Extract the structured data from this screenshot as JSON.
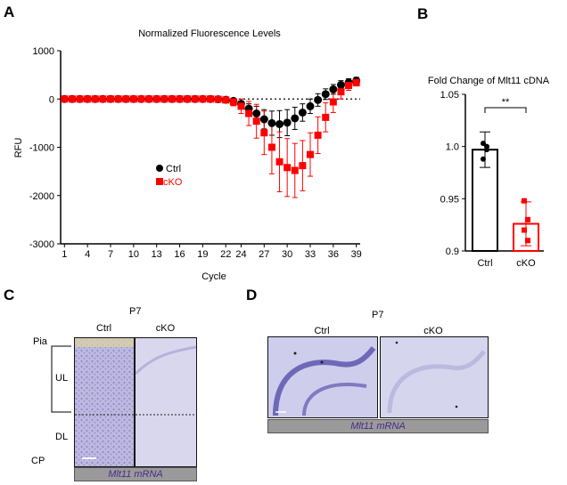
{
  "panels": {
    "a": "A",
    "b": "B",
    "c": "C",
    "d": "D"
  },
  "colors": {
    "ctrl": "#000000",
    "cko": "#ff0000",
    "stain_bg": "#c9c8e6",
    "stain_dark": "#6a64b0",
    "bar_gray": "#9a9a9a"
  },
  "chart_data": [
    {
      "type": "scatter",
      "title": "Normalized Fluorescence Levels",
      "xlabel": "Cycle",
      "ylabel": "RFU",
      "xlim": [
        0.5,
        39.5
      ],
      "ylim": [
        -3000,
        1000
      ],
      "xticks": [
        "1",
        "4",
        "7",
        "10",
        "13",
        "16",
        "19",
        "22",
        "24",
        "27",
        "30",
        "33",
        "36",
        "39"
      ],
      "yticks": [
        "1000",
        "0",
        "-1000",
        "-2000",
        "-3000"
      ],
      "legend": "center-left",
      "dotted_baseline": 0,
      "series": [
        {
          "name": "Ctrl",
          "marker": "circle",
          "x": [
            1,
            2,
            3,
            4,
            5,
            6,
            7,
            8,
            9,
            10,
            11,
            12,
            13,
            14,
            15,
            16,
            17,
            18,
            19,
            20,
            21,
            22,
            23,
            24,
            25,
            26,
            27,
            28,
            29,
            30,
            31,
            32,
            33,
            34,
            35,
            36,
            37,
            38,
            39
          ],
          "y": [
            0,
            0,
            0,
            0,
            0,
            0,
            0,
            0,
            0,
            0,
            0,
            0,
            0,
            0,
            0,
            0,
            0,
            0,
            0,
            0,
            -5,
            -15,
            -40,
            -100,
            -200,
            -300,
            -420,
            -500,
            -520,
            -490,
            -400,
            -280,
            -150,
            -20,
            100,
            200,
            290,
            340,
            380
          ],
          "err": [
            20,
            20,
            20,
            20,
            20,
            20,
            20,
            20,
            20,
            20,
            20,
            20,
            20,
            20,
            20,
            20,
            20,
            20,
            20,
            20,
            20,
            30,
            40,
            60,
            100,
            150,
            200,
            250,
            280,
            270,
            230,
            180,
            150,
            130,
            110,
            100,
            90,
            80,
            70
          ]
        },
        {
          "name": "cKO",
          "marker": "square",
          "x": [
            1,
            2,
            3,
            4,
            5,
            6,
            7,
            8,
            9,
            10,
            11,
            12,
            13,
            14,
            15,
            16,
            17,
            18,
            19,
            20,
            21,
            22,
            23,
            24,
            25,
            26,
            27,
            28,
            29,
            30,
            31,
            32,
            33,
            34,
            35,
            36,
            37,
            38,
            39
          ],
          "y": [
            0,
            0,
            0,
            0,
            0,
            0,
            0,
            0,
            0,
            0,
            0,
            0,
            0,
            0,
            0,
            0,
            0,
            0,
            0,
            0,
            -5,
            -20,
            -60,
            -150,
            -300,
            -460,
            -700,
            -1000,
            -1300,
            -1420,
            -1480,
            -1380,
            -1150,
            -750,
            -380,
            -60,
            150,
            280,
            340
          ],
          "err": [
            20,
            20,
            20,
            20,
            20,
            20,
            20,
            20,
            20,
            20,
            20,
            20,
            20,
            20,
            20,
            20,
            20,
            20,
            20,
            20,
            20,
            40,
            80,
            150,
            250,
            350,
            450,
            550,
            620,
            600,
            560,
            520,
            450,
            380,
            300,
            220,
            150,
            100,
            70
          ]
        }
      ]
    },
    {
      "type": "bar",
      "title": "Fold Change of Mlt11 cDNA",
      "categories": [
        "Ctrl",
        "cKO"
      ],
      "values": [
        0.997,
        0.926
      ],
      "err": [
        0.017,
        0.021
      ],
      "points": [
        [
          1.003,
          0.997,
          0.988,
          1.0
        ],
        [
          0.948,
          0.93,
          0.92,
          0.91
        ]
      ],
      "ylim": [
        0.9,
        1.05
      ],
      "yticks": [
        "0.9",
        "0.95",
        "1.0",
        "1.05"
      ],
      "significance": "**"
    }
  ],
  "panel_c": {
    "stage": "P7",
    "col_labels": [
      "Ctrl",
      "cKO"
    ],
    "layer_labels": [
      "Pia",
      "UL",
      "DL",
      "CP"
    ],
    "mrna": "Mlt11 mRNA"
  },
  "panel_d": {
    "stage": "P7",
    "col_labels": [
      "Ctrl",
      "cKO"
    ],
    "mrna": "Mlt11 mRNA"
  }
}
